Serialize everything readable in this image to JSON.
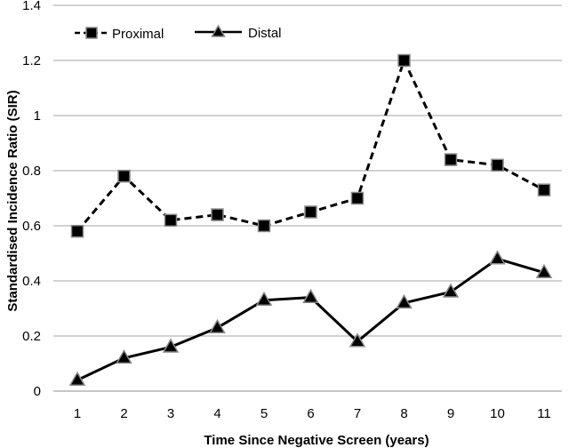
{
  "chart_data": {
    "type": "line",
    "xlabel": "Time Since Negative Screen (years)",
    "ylabel": "Standardised Incidence Ratio (SIR)",
    "categories": [
      "1",
      "2",
      "3",
      "4",
      "5",
      "6",
      "7",
      "8",
      "9",
      "10",
      "11"
    ],
    "ylim": [
      0,
      1.4
    ],
    "yticks": [
      "0",
      "0.2",
      "0.4",
      "0.6",
      "0.8",
      "1",
      "1.2",
      "1.4"
    ],
    "grid": true,
    "legend_position": "top-left",
    "series": [
      {
        "name": "Proximal",
        "values": [
          0.58,
          0.78,
          0.62,
          0.64,
          0.6,
          0.65,
          0.7,
          1.2,
          0.84,
          0.82,
          0.73
        ],
        "line_style": "dashed",
        "marker": "square",
        "color": "#000000"
      },
      {
        "name": "Distal",
        "values": [
          0.04,
          0.12,
          0.16,
          0.23,
          0.33,
          0.34,
          0.18,
          0.32,
          0.36,
          0.48,
          0.43
        ],
        "line_style": "solid",
        "marker": "triangle",
        "color": "#000000"
      }
    ]
  }
}
